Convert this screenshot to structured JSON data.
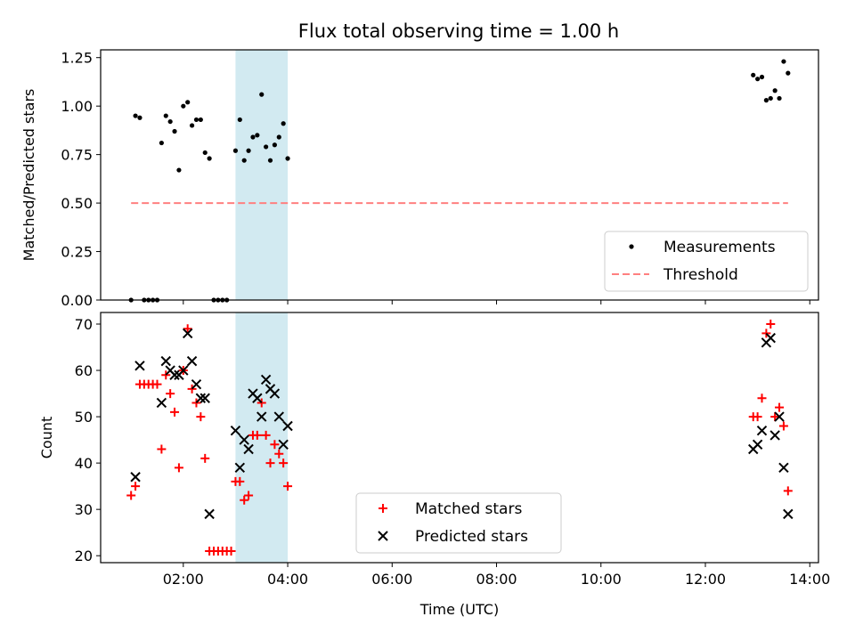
{
  "figure": {
    "title": "Flux total observing time = 1.00 h",
    "highlight_color": "#add8e6"
  },
  "chart_data": [
    {
      "type": "scatter",
      "name": "ratio-panel",
      "title": "Flux total observing time = 1.00 h",
      "xlabel": "",
      "ylabel": "Matched/Predicted stars",
      "xlim": [
        "00:25",
        "14:10"
      ],
      "ylim": [
        0,
        1.29
      ],
      "yticks": [
        0.0,
        0.25,
        0.5,
        0.75,
        1.0,
        1.25
      ],
      "ytick_labels": [
        "0.00",
        "0.25",
        "0.50",
        "0.75",
        "1.00",
        "1.25"
      ],
      "xticks": [
        "02:00",
        "04:00",
        "06:00",
        "08:00",
        "10:00",
        "12:00",
        "14:00"
      ],
      "xtick_labels_visible": false,
      "highlight_span": [
        "03:00",
        "04:00"
      ],
      "grid": false,
      "legend": {
        "location": "lower right",
        "entries": [
          {
            "label": "Measurements",
            "marker": "dot",
            "color": "#000000"
          },
          {
            "label": "Threshold",
            "marker": "dashed-line",
            "color": "#ff8080"
          }
        ]
      },
      "series": [
        {
          "name": "Measurements",
          "marker": "dot",
          "color": "#000000",
          "points": [
            [
              "01:00",
              0.0
            ],
            [
              "01:05",
              0.95
            ],
            [
              "01:10",
              0.94
            ],
            [
              "01:15",
              0.0
            ],
            [
              "01:20",
              0.0
            ],
            [
              "01:25",
              0.0
            ],
            [
              "01:30",
              0.0
            ],
            [
              "01:35",
              0.81
            ],
            [
              "01:40",
              0.95
            ],
            [
              "01:45",
              0.92
            ],
            [
              "01:50",
              0.87
            ],
            [
              "01:55",
              0.67
            ],
            [
              "02:00",
              1.0
            ],
            [
              "02:05",
              1.02
            ],
            [
              "02:10",
              0.9
            ],
            [
              "02:15",
              0.93
            ],
            [
              "02:20",
              0.93
            ],
            [
              "02:25",
              0.76
            ],
            [
              "02:30",
              0.73
            ],
            [
              "02:35",
              0.0
            ],
            [
              "02:40",
              0.0
            ],
            [
              "02:45",
              0.0
            ],
            [
              "02:50",
              0.0
            ],
            [
              "03:00",
              0.77
            ],
            [
              "03:05",
              0.93
            ],
            [
              "03:10",
              0.72
            ],
            [
              "03:15",
              0.77
            ],
            [
              "03:20",
              0.84
            ],
            [
              "03:25",
              0.85
            ],
            [
              "03:30",
              1.06
            ],
            [
              "03:35",
              0.79
            ],
            [
              "03:40",
              0.72
            ],
            [
              "03:45",
              0.8
            ],
            [
              "03:50",
              0.84
            ],
            [
              "03:55",
              0.91
            ],
            [
              "04:00",
              0.73
            ],
            [
              "12:55",
              1.16
            ],
            [
              "13:00",
              1.14
            ],
            [
              "13:05",
              1.15
            ],
            [
              "13:10",
              1.03
            ],
            [
              "13:15",
              1.04
            ],
            [
              "13:20",
              1.08
            ],
            [
              "13:25",
              1.04
            ],
            [
              "13:30",
              1.23
            ],
            [
              "13:35",
              1.17
            ]
          ]
        },
        {
          "name": "Threshold",
          "marker": "dashed-line",
          "color": "#ff8080",
          "points": [
            [
              "01:00",
              0.5
            ],
            [
              "13:35",
              0.5
            ]
          ]
        }
      ]
    },
    {
      "type": "scatter",
      "name": "count-panel",
      "title": "",
      "xlabel": "Time (UTC)",
      "ylabel": "Count",
      "xlim": [
        "00:25",
        "14:10"
      ],
      "ylim": [
        18.5,
        72.5
      ],
      "yticks": [
        20,
        30,
        40,
        50,
        60,
        70
      ],
      "ytick_labels": [
        "20",
        "30",
        "40",
        "50",
        "60",
        "70"
      ],
      "xticks": [
        "02:00",
        "04:00",
        "06:00",
        "08:00",
        "10:00",
        "12:00",
        "14:00"
      ],
      "xtick_labels": [
        "02:00",
        "04:00",
        "06:00",
        "08:00",
        "10:00",
        "12:00",
        "14:00"
      ],
      "highlight_span": [
        "03:00",
        "04:00"
      ],
      "grid": false,
      "legend": {
        "location": "lower center",
        "entries": [
          {
            "label": "Matched stars",
            "marker": "plus",
            "color": "#ff0000"
          },
          {
            "label": "Predicted stars",
            "marker": "x",
            "color": "#000000"
          }
        ]
      },
      "series": [
        {
          "name": "Matched stars",
          "marker": "plus",
          "color": "#ff0000",
          "points": [
            [
              "01:00",
              33
            ],
            [
              "01:05",
              35
            ],
            [
              "01:10",
              57
            ],
            [
              "01:15",
              57
            ],
            [
              "01:20",
              57
            ],
            [
              "01:25",
              57
            ],
            [
              "01:30",
              57
            ],
            [
              "01:35",
              43
            ],
            [
              "01:40",
              59
            ],
            [
              "01:45",
              55
            ],
            [
              "01:50",
              51
            ],
            [
              "01:55",
              39
            ],
            [
              "02:00",
              60
            ],
            [
              "02:05",
              69
            ],
            [
              "02:10",
              56
            ],
            [
              "02:15",
              53
            ],
            [
              "02:20",
              50
            ],
            [
              "02:25",
              41
            ],
            [
              "02:30",
              21
            ],
            [
              "02:35",
              21
            ],
            [
              "02:40",
              21
            ],
            [
              "02:45",
              21
            ],
            [
              "02:50",
              21
            ],
            [
              "02:55",
              21
            ],
            [
              "03:00",
              36
            ],
            [
              "03:05",
              36
            ],
            [
              "03:10",
              32
            ],
            [
              "03:15",
              33
            ],
            [
              "03:20",
              46
            ],
            [
              "03:25",
              46
            ],
            [
              "03:30",
              53
            ],
            [
              "03:35",
              46
            ],
            [
              "03:40",
              40
            ],
            [
              "03:45",
              44
            ],
            [
              "03:50",
              42
            ],
            [
              "03:55",
              40
            ],
            [
              "04:00",
              35
            ],
            [
              "12:55",
              50
            ],
            [
              "13:00",
              50
            ],
            [
              "13:05",
              54
            ],
            [
              "13:10",
              68
            ],
            [
              "13:15",
              70
            ],
            [
              "13:20",
              50
            ],
            [
              "13:25",
              52
            ],
            [
              "13:30",
              48
            ],
            [
              "13:35",
              34
            ]
          ]
        },
        {
          "name": "Predicted stars",
          "marker": "x",
          "color": "#000000",
          "points": [
            [
              "01:05",
              37
            ],
            [
              "01:10",
              61
            ],
            [
              "01:35",
              53
            ],
            [
              "01:40",
              62
            ],
            [
              "01:45",
              60
            ],
            [
              "01:50",
              59
            ],
            [
              "01:55",
              59
            ],
            [
              "02:00",
              60
            ],
            [
              "02:05",
              68
            ],
            [
              "02:10",
              62
            ],
            [
              "02:15",
              57
            ],
            [
              "02:20",
              54
            ],
            [
              "02:25",
              54
            ],
            [
              "02:30",
              29
            ],
            [
              "03:00",
              47
            ],
            [
              "03:05",
              39
            ],
            [
              "03:10",
              45
            ],
            [
              "03:15",
              43
            ],
            [
              "03:20",
              55
            ],
            [
              "03:25",
              54
            ],
            [
              "03:30",
              50
            ],
            [
              "03:35",
              58
            ],
            [
              "03:40",
              56
            ],
            [
              "03:45",
              55
            ],
            [
              "03:50",
              50
            ],
            [
              "03:55",
              44
            ],
            [
              "04:00",
              48
            ],
            [
              "12:55",
              43
            ],
            [
              "13:00",
              44
            ],
            [
              "13:05",
              47
            ],
            [
              "13:10",
              66
            ],
            [
              "13:15",
              67
            ],
            [
              "13:20",
              46
            ],
            [
              "13:25",
              50
            ],
            [
              "13:30",
              39
            ],
            [
              "13:35",
              29
            ]
          ]
        }
      ]
    }
  ]
}
